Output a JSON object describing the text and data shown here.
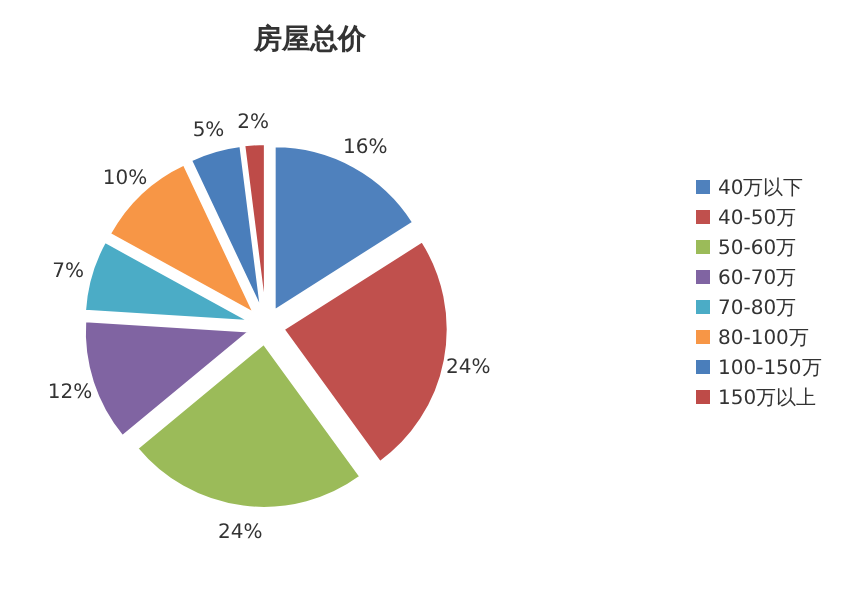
{
  "chart_data": {
    "type": "pie",
    "title": "房屋总价",
    "categories": [
      "40万以下",
      "40-50万",
      "50-60万",
      "60-70万",
      "70-80万",
      "80-100万",
      "100-150万",
      "150万以上"
    ],
    "values": [
      16,
      24,
      24,
      12,
      7,
      10,
      5,
      2
    ],
    "value_labels": [
      "16%",
      "24%",
      "24%",
      "12%",
      "7%",
      "10%",
      "5%",
      "2%"
    ],
    "colors": [
      "#4f81bd",
      "#c0504d",
      "#9bbb59",
      "#8064a2",
      "#4bacc6",
      "#f79646",
      "#4a7ebb",
      "#be4b48"
    ],
    "legend": "right"
  }
}
